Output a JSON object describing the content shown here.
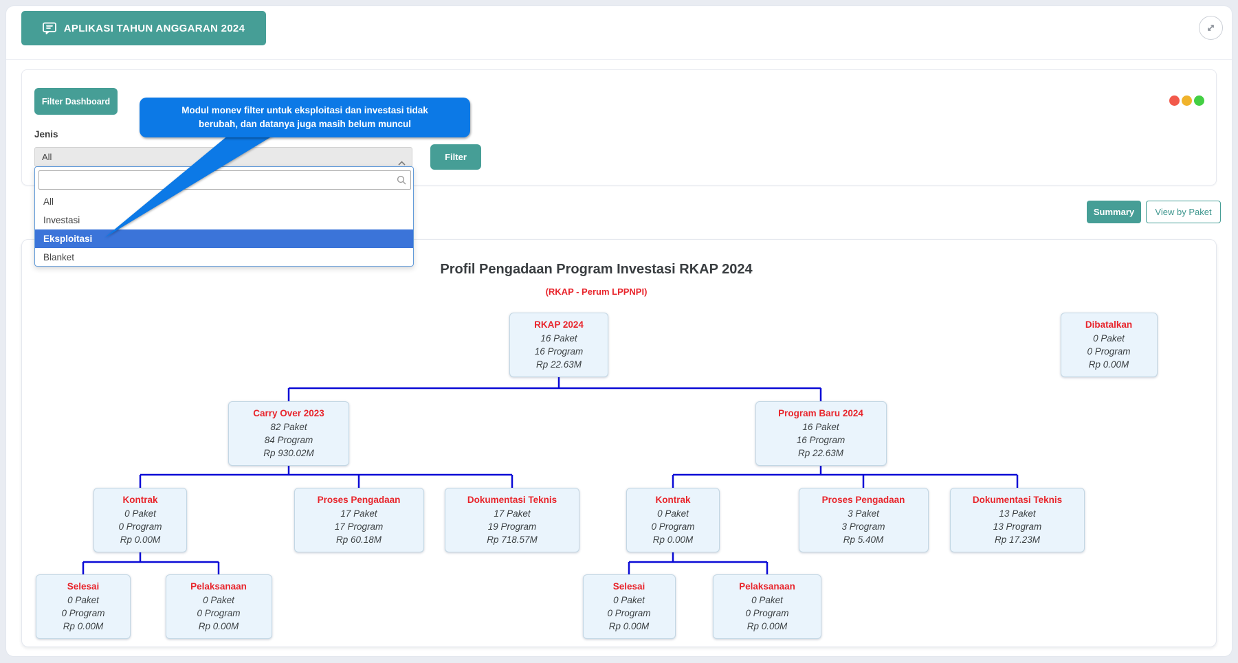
{
  "app": {
    "title": "APLIKASI TAHUN ANGGARAN 2024"
  },
  "filter_panel": {
    "filter_dashboard_label": "Filter Dashboard",
    "jenis_label": "Jenis",
    "select_value": "All",
    "search_value": "",
    "options": [
      {
        "label": "All",
        "selected": false
      },
      {
        "label": "Investasi",
        "selected": false
      },
      {
        "label": "Eksploitasi",
        "selected": true
      },
      {
        "label": "Blanket",
        "selected": false
      }
    ],
    "filter_button_label": "Filter",
    "traffic_dots": [
      {
        "name": "red",
        "color": "#f2594b"
      },
      {
        "name": "yellow",
        "color": "#f0b32c"
      },
      {
        "name": "green",
        "color": "#43cf43"
      }
    ]
  },
  "tooltip": {
    "line1": "Modul monev filter untuk eksploitasi dan investasi tidak",
    "line2": "berubah, dan datanya juga masih belum muncul",
    "color": "#0c79e6"
  },
  "view_buttons": {
    "summary": "Summary",
    "view_by_paket": "View by Paket"
  },
  "chart_data": {
    "type": "org-tree",
    "title": "Profil Pengadaan Program Investasi RKAP 2024",
    "subtitle": "(RKAP - Perum LPPNPI)",
    "nodes": [
      {
        "id": "rkap_2024",
        "parent": null,
        "title": "RKAP 2024",
        "paket": "16 Paket",
        "program": "16 Program",
        "nilai": "Rp 22.63M"
      },
      {
        "id": "dibatalkan",
        "parent": null,
        "title": "Dibatalkan",
        "paket": "0 Paket",
        "program": "0 Program",
        "nilai": "Rp 0.00M"
      },
      {
        "id": "carry_over_2023",
        "parent": "rkap_2024",
        "title": "Carry Over 2023",
        "paket": "82 Paket",
        "program": "84 Program",
        "nilai": "Rp 930.02M"
      },
      {
        "id": "program_baru_2024",
        "parent": "rkap_2024",
        "title": "Program Baru 2024",
        "paket": "16 Paket",
        "program": "16 Program",
        "nilai": "Rp 22.63M"
      },
      {
        "id": "kontrak_co",
        "parent": "carry_over_2023",
        "title": "Kontrak",
        "paket": "0 Paket",
        "program": "0 Program",
        "nilai": "Rp 0.00M"
      },
      {
        "id": "proses_pengadaan_co",
        "parent": "carry_over_2023",
        "title": "Proses Pengadaan",
        "paket": "17 Paket",
        "program": "17 Program",
        "nilai": "Rp 60.18M"
      },
      {
        "id": "dokumentasi_teknis_co",
        "parent": "carry_over_2023",
        "title": "Dokumentasi Teknis",
        "paket": "17 Paket",
        "program": "19 Program",
        "nilai": "Rp 718.57M"
      },
      {
        "id": "selesai_co",
        "parent": "kontrak_co",
        "title": "Selesai",
        "paket": "0 Paket",
        "program": "0 Program",
        "nilai": "Rp 0.00M"
      },
      {
        "id": "pelaksanaan_co",
        "parent": "kontrak_co",
        "title": "Pelaksanaan",
        "paket": "0 Paket",
        "program": "0 Program",
        "nilai": "Rp 0.00M"
      },
      {
        "id": "kontrak_pb",
        "parent": "program_baru_2024",
        "title": "Kontrak",
        "paket": "0 Paket",
        "program": "0 Program",
        "nilai": "Rp 0.00M"
      },
      {
        "id": "proses_pengadaan_pb",
        "parent": "program_baru_2024",
        "title": "Proses Pengadaan",
        "paket": "3 Paket",
        "program": "3 Program",
        "nilai": "Rp 5.40M"
      },
      {
        "id": "dokumentasi_teknis_pb",
        "parent": "program_baru_2024",
        "title": "Dokumentasi Teknis",
        "paket": "13 Paket",
        "program": "13 Program",
        "nilai": "Rp 17.23M"
      },
      {
        "id": "selesai_pb",
        "parent": "kontrak_pb",
        "title": "Selesai",
        "paket": "0 Paket",
        "program": "0 Program",
        "nilai": "Rp 0.00M"
      },
      {
        "id": "pelaksanaan_pb",
        "parent": "kontrak_pb",
        "title": "Pelaksanaan",
        "paket": "0 Paket",
        "program": "0 Program",
        "nilai": "Rp 0.00M"
      }
    ]
  },
  "colors": {
    "teal": "#469e96",
    "node_title_red": "#e8252c",
    "connector_blue": "#0a0ad6",
    "selected_option_blue": "#3b74d9",
    "tooltip_blue": "#0c79e6"
  }
}
